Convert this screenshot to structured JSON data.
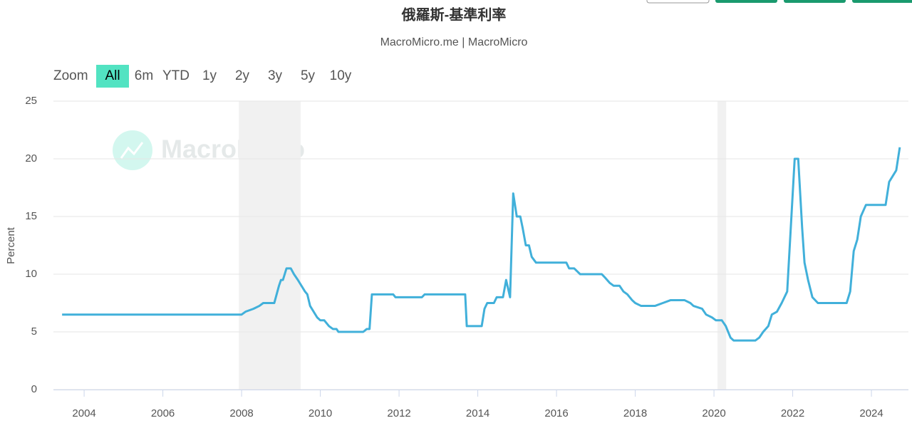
{
  "chart_data": {
    "type": "line",
    "title": "俄羅斯-基準利率",
    "subtitle": "MacroMicro.me | MacroMicro",
    "watermark": "MacroMicro",
    "range_selector": {
      "label": "Zoom",
      "buttons": [
        "All",
        "6m",
        "YTD",
        "1y",
        "2y",
        "3y",
        "5y",
        "10y"
      ],
      "selected": 0
    },
    "y_label": "Percent",
    "color": "#41b0da",
    "shade_color": "#f1f1f1",
    "shaded_ranges": [
      [
        2007.93,
        2009.5
      ],
      [
        2020.09,
        2020.31
      ]
    ],
    "x": [
      2003.44,
      2008.0,
      2008.1,
      2008.3,
      2008.45,
      2008.55,
      2008.83,
      2008.95,
      2009.0,
      2009.05,
      2009.14,
      2009.25,
      2009.33,
      2009.43,
      2009.61,
      2009.67,
      2009.74,
      2009.92,
      2010.0,
      2010.1,
      2010.22,
      2010.32,
      2010.41,
      2010.46,
      2011.09,
      2011.18,
      2011.25,
      2011.31,
      2011.85,
      2011.91,
      2012.58,
      2012.65,
      2013.68,
      2013.72,
      2014.1,
      2014.17,
      2014.24,
      2014.41,
      2014.48,
      2014.64,
      2014.72,
      2014.82,
      2014.9,
      2014.99,
      2015.08,
      2015.14,
      2015.22,
      2015.3,
      2015.37,
      2015.48,
      2016.25,
      2016.32,
      2016.45,
      2016.6,
      2017.15,
      2017.22,
      2017.35,
      2017.45,
      2017.6,
      2017.7,
      2017.8,
      2017.92,
      2018.0,
      2018.15,
      2018.5,
      2018.7,
      2018.9,
      2019.25,
      2019.4,
      2019.48,
      2019.7,
      2019.8,
      2019.95,
      2020.05,
      2020.2,
      2020.3,
      2020.42,
      2020.5,
      2021.05,
      2021.15,
      2021.25,
      2021.38,
      2021.47,
      2021.6,
      2021.72,
      2021.86,
      2022.05,
      2022.14,
      2022.24,
      2022.3,
      2022.39,
      2022.5,
      2022.64,
      2023.37,
      2023.46,
      2023.55,
      2023.64,
      2023.73,
      2023.86,
      2024.36,
      2024.45,
      2024.63,
      2024.72
    ],
    "values": [
      6.5,
      6.5,
      6.75,
      7.0,
      7.25,
      7.5,
      7.5,
      9.0,
      9.5,
      9.5,
      10.5,
      10.5,
      10.0,
      9.5,
      8.5,
      8.25,
      7.25,
      6.25,
      6.0,
      6.0,
      5.5,
      5.25,
      5.25,
      5.0,
      5.0,
      5.25,
      5.25,
      8.25,
      8.25,
      8.0,
      8.0,
      8.25,
      8.25,
      5.5,
      5.5,
      7.0,
      7.5,
      7.5,
      8.0,
      8.0,
      9.5,
      8.0,
      17.0,
      15.0,
      15.0,
      14.0,
      12.5,
      12.5,
      11.5,
      11.0,
      11.0,
      10.5,
      10.5,
      10.0,
      10.0,
      9.75,
      9.25,
      9.0,
      9.0,
      8.5,
      8.25,
      7.75,
      7.5,
      7.25,
      7.25,
      7.5,
      7.75,
      7.75,
      7.5,
      7.25,
      7.0,
      6.5,
      6.25,
      6.0,
      6.0,
      5.5,
      4.5,
      4.25,
      4.25,
      4.5,
      5.0,
      5.5,
      6.5,
      6.75,
      7.5,
      8.5,
      20.0,
      20.0,
      14.0,
      11.0,
      9.5,
      8.0,
      7.5,
      7.5,
      8.5,
      12.0,
      13.0,
      15.0,
      16.0,
      16.0,
      18.0,
      19.0,
      21.0
    ],
    "xlim": [
      2003.22,
      2024.94
    ],
    "ylim": [
      0,
      25
    ],
    "xticks": [
      2004,
      2006,
      2008,
      2010,
      2012,
      2014,
      2016,
      2018,
      2020,
      2022,
      2024
    ],
    "yticks": [
      0,
      5,
      10,
      15,
      20,
      25
    ],
    "grid": true
  }
}
